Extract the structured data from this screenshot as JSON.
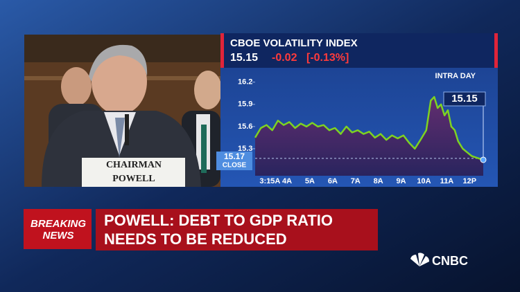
{
  "chart_data": {
    "type": "line",
    "title": "CBOE VOLATILITY INDEX",
    "change": -0.02,
    "change_pct": "[-0.13%]",
    "subtitle": "INTRA DAY",
    "close": 15.17,
    "close_label": "CLOSE",
    "x": [
      2.6,
      2.85,
      3.1,
      3.35,
      3.6,
      3.85,
      4.1,
      4.35,
      4.6,
      4.85,
      5.1,
      5.35,
      5.6,
      5.85,
      6.1,
      6.35,
      6.6,
      6.85,
      7.1,
      7.35,
      7.6,
      7.85,
      8.1,
      8.35,
      8.6,
      8.85,
      9.1,
      9.35,
      9.6,
      9.85,
      10.1,
      10.3,
      10.45,
      10.6,
      10.75,
      10.9,
      11.05,
      11.2,
      11.35,
      11.5,
      11.7,
      11.9,
      12.1,
      12.3,
      12.6
    ],
    "values": [
      15.45,
      15.58,
      15.62,
      15.55,
      15.68,
      15.62,
      15.66,
      15.58,
      15.64,
      15.6,
      15.65,
      15.6,
      15.62,
      15.55,
      15.58,
      15.5,
      15.6,
      15.52,
      15.55,
      15.5,
      15.53,
      15.45,
      15.5,
      15.42,
      15.48,
      15.44,
      15.48,
      15.38,
      15.3,
      15.42,
      15.55,
      15.95,
      16.0,
      15.85,
      15.9,
      15.75,
      15.82,
      15.6,
      15.55,
      15.4,
      15.3,
      15.25,
      15.2,
      15.18,
      15.15
    ],
    "color": "#7ed321",
    "xlim": [
      2.6,
      12.6
    ],
    "ylim": [
      14.86,
      16.3
    ],
    "xticks": [
      {
        "value": 3.25,
        "label": "3:15A"
      },
      {
        "value": 4,
        "label": "4A"
      },
      {
        "value": 5,
        "label": "5A"
      },
      {
        "value": 6,
        "label": "6A"
      },
      {
        "value": 7,
        "label": "7A"
      },
      {
        "value": 8,
        "label": "8A"
      },
      {
        "value": 9,
        "label": "9A"
      },
      {
        "value": 10,
        "label": "10A"
      },
      {
        "value": 11,
        "label": "11A"
      },
      {
        "value": 12,
        "label": "12P"
      }
    ],
    "yticks": [
      15.3,
      15.6,
      15.9,
      16.2
    ]
  },
  "placard": [
    "CHAIRMAN",
    "POWELL"
  ],
  "banner": {
    "badge": [
      "BREAKING",
      "NEWS"
    ],
    "headline": [
      "POWELL: DEBT TO GDP RATIO",
      "NEEDS TO BE REDUCED"
    ]
  },
  "logo": "CNBC"
}
